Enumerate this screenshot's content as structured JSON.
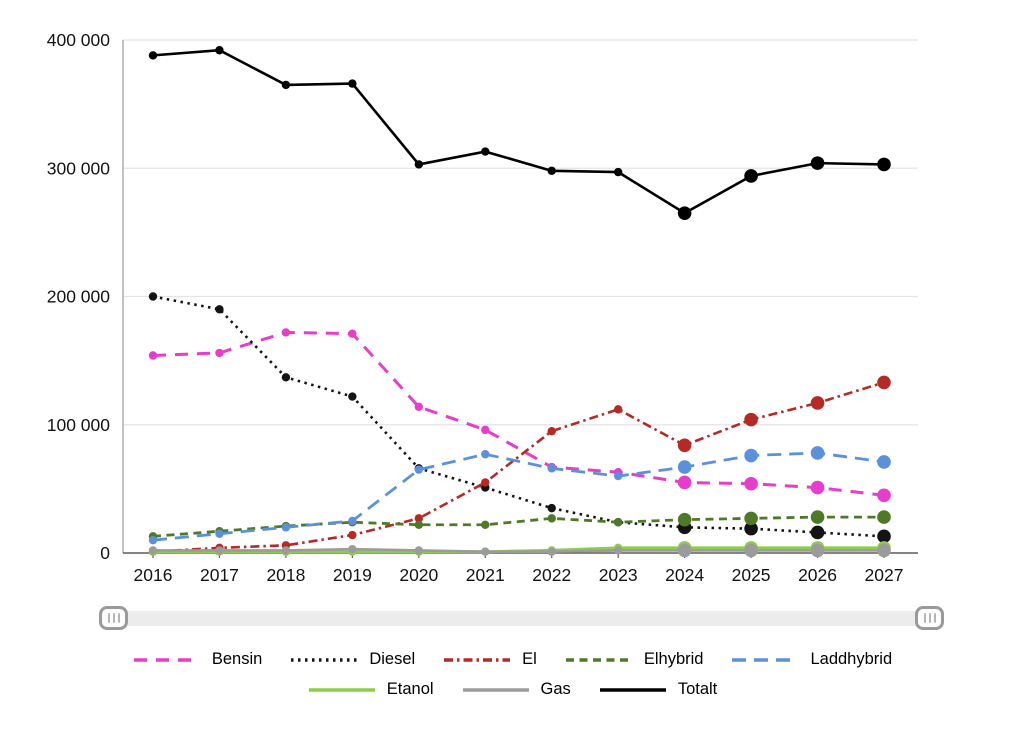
{
  "chart_data": {
    "type": "line",
    "title": "",
    "xlabel": "",
    "ylabel": "",
    "x_labels": [
      "2016",
      "2017",
      "2018",
      "2019",
      "2020",
      "2021",
      "2022",
      "2023",
      "2024",
      "2025",
      "2026",
      "2027"
    ],
    "ylim": [
      0,
      400000
    ],
    "y_ticks": [
      0,
      100000,
      200000,
      300000,
      400000
    ],
    "y_tick_labels": [
      "0",
      "100 000",
      "200 000",
      "300 000",
      "400 000"
    ],
    "grid": "horizontal-only",
    "legend_position": "bottom",
    "legend_row_sizes": [
      5,
      3
    ],
    "series": [
      {
        "name": "Bensin",
        "color": "#e83ccc",
        "dash": "13,9",
        "line_width": 3.0,
        "values": [
          154000,
          156000,
          172000,
          171000,
          114000,
          96000,
          67000,
          63000,
          55000,
          54000,
          51000,
          45000
        ]
      },
      {
        "name": "Diesel",
        "color": "#141414",
        "dash": "2.5,4.5",
        "line_width": 2.6,
        "values": [
          200000,
          190000,
          137000,
          122000,
          66000,
          51000,
          35000,
          24000,
          20000,
          19000,
          16000,
          13000
        ]
      },
      {
        "name": "El",
        "color": "#b52a24",
        "dash": "9,4,2.5,4",
        "line_width": 2.6,
        "values": [
          1000,
          4000,
          6000,
          14000,
          27000,
          55000,
          95000,
          112000,
          84000,
          104000,
          117000,
          133000
        ]
      },
      {
        "name": "Elhybrid",
        "color": "#4e7a27",
        "dash": "8,5.5",
        "line_width": 2.8,
        "values": [
          13000,
          17000,
          21000,
          24000,
          22000,
          22000,
          27000,
          24000,
          26000,
          27000,
          28000,
          28000
        ]
      },
      {
        "name": "Laddhybrid",
        "color": "#5b91dc",
        "dash": "14,8",
        "line_width": 2.8,
        "values": [
          10000,
          15000,
          20000,
          25000,
          65000,
          77000,
          66000,
          60000,
          67000,
          76000,
          78000,
          71000
        ]
      },
      {
        "name": "Etanol",
        "color": "#8ccd49",
        "dash": "",
        "line_width": 3.0,
        "values": [
          1000,
          1000,
          1000,
          1000,
          1000,
          1000,
          2000,
          4000,
          4000,
          4000,
          4000,
          4000
        ]
      },
      {
        "name": "Gas",
        "color": "#9b9b9b",
        "dash": "",
        "line_width": 2.6,
        "values": [
          2000,
          2000,
          2000,
          3000,
          2000,
          1000,
          1000,
          2000,
          2000,
          2000,
          2000,
          2000
        ]
      },
      {
        "name": "Totalt",
        "color": "#000000",
        "dash": "",
        "line_width": 2.6,
        "values": [
          388000,
          392000,
          365000,
          366000,
          303000,
          313000,
          298000,
          297000,
          265000,
          294000,
          304000,
          303000
        ]
      }
    ]
  },
  "range_slider": {
    "left_handle_icon": "grip-handle-icon",
    "right_handle_icon": "grip-handle-icon"
  }
}
